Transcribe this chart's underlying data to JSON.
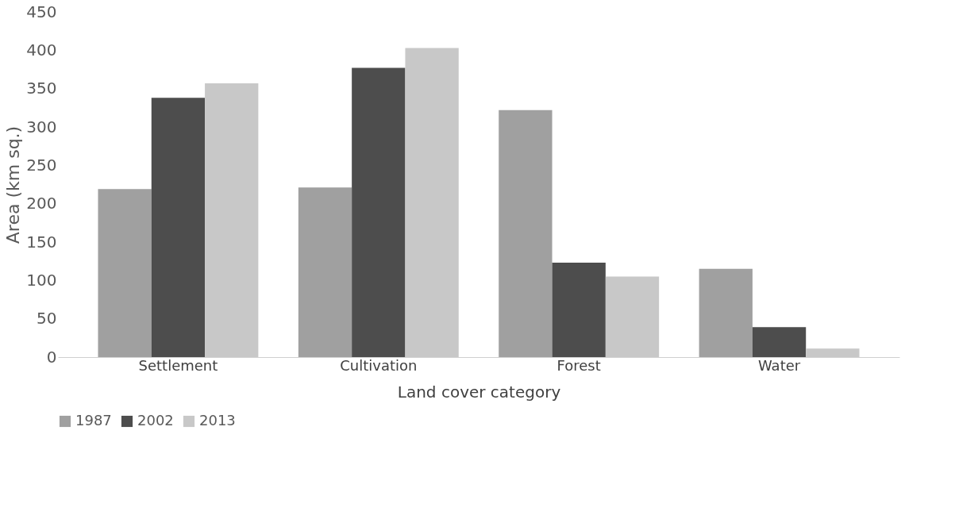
{
  "chart_data": {
    "type": "bar",
    "xlabel": "Land cover category",
    "ylabel": "Area  (km sq.)",
    "categories": [
      "Settlement",
      "Cultivation",
      "Forest",
      "Water"
    ],
    "series": [
      {
        "name": "1987",
        "color": "#a0a0a0",
        "values": [
          219,
          221,
          322,
          115
        ]
      },
      {
        "name": "2002",
        "color": "#4d4d4d",
        "values": [
          338,
          377,
          123,
          39
        ]
      },
      {
        "name": "2013",
        "color": "#c8c8c8",
        "values": [
          357,
          403,
          105,
          11
        ]
      }
    ],
    "ylim": [
      0,
      450
    ],
    "yticks": [
      0,
      50,
      100,
      150,
      200,
      250,
      300,
      350,
      400,
      450
    ],
    "grid": false,
    "legend": "bottom"
  }
}
